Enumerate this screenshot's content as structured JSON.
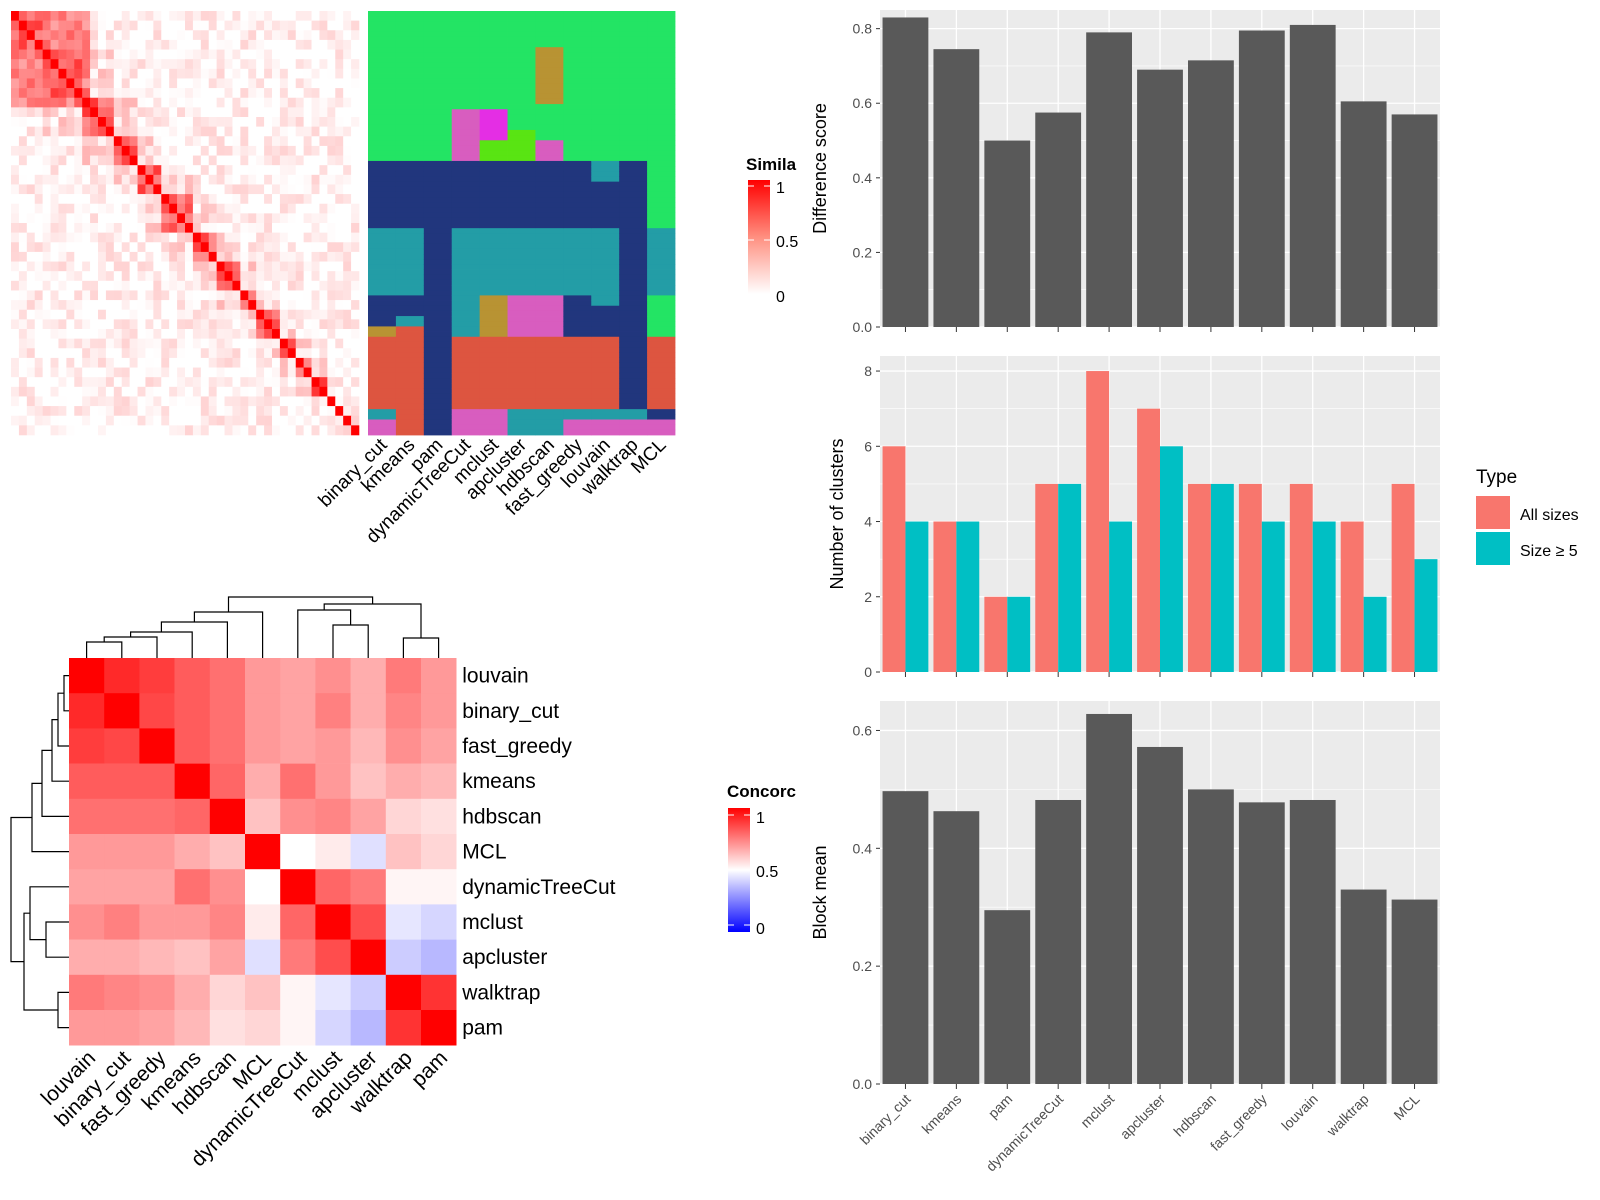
{
  "clust_labels": [
    "binary_cut",
    "kmeans",
    "pam",
    "dynamicTreeCut",
    "mclust",
    "apcluster",
    "hdbscan",
    "fast_greedy",
    "louvain",
    "walktrap",
    "MCL"
  ],
  "conc_labels": [
    "louvain",
    "binary_cut",
    "fast_greedy",
    "kmeans",
    "hdbscan",
    "MCL",
    "dynamicTreeCut",
    "mclust",
    "apcluster",
    "walktrap",
    "pam"
  ],
  "legends": {
    "similarity": {
      "title": "Simila",
      "ticks": [
        "1",
        "0.5",
        "0"
      ]
    },
    "concordance": {
      "title": "Concorc",
      "ticks": [
        "1",
        "0.5",
        "0"
      ]
    }
  },
  "cluster_colors": [
    "#23e464",
    "#21367d",
    "#239da6",
    "#dd5540",
    "#d85dbf",
    "#b89333",
    "#e42ee4",
    "#59e413"
  ],
  "clusters": {
    "binary_cut": [
      0,
      0,
      0,
      0,
      0,
      0,
      0,
      0,
      0,
      0,
      0,
      0,
      0,
      0,
      0,
      0,
      0,
      0,
      0,
      0,
      0,
      0,
      0,
      0,
      0,
      0,
      0,
      0,
      0,
      1,
      1,
      1,
      1,
      1,
      1,
      1,
      1,
      1,
      1,
      1,
      1,
      1,
      2,
      2,
      2,
      2,
      2,
      2,
      2,
      2,
      2,
      2,
      2,
      2,
      2,
      1,
      1,
      1,
      1,
      1,
      1,
      5,
      5,
      3,
      3,
      3,
      3,
      3,
      3,
      3,
      3,
      3,
      3,
      3,
      3,
      3,
      3,
      2,
      2,
      4,
      4,
      4
    ],
    "kmeans": [
      0,
      0,
      0,
      0,
      0,
      0,
      0,
      0,
      0,
      0,
      0,
      0,
      0,
      0,
      0,
      0,
      0,
      0,
      0,
      0,
      0,
      0,
      0,
      0,
      0,
      0,
      0,
      0,
      0,
      1,
      1,
      1,
      1,
      1,
      1,
      1,
      1,
      1,
      1,
      1,
      1,
      1,
      2,
      2,
      2,
      2,
      2,
      2,
      2,
      2,
      2,
      2,
      2,
      2,
      2,
      1,
      1,
      1,
      1,
      2,
      2,
      3,
      3,
      3,
      3,
      3,
      3,
      3,
      3,
      3,
      3,
      3,
      3,
      3,
      3,
      3,
      3,
      3,
      3,
      3,
      3,
      3
    ],
    "pam": [
      0,
      0,
      0,
      0,
      0,
      0,
      0,
      0,
      0,
      0,
      0,
      0,
      0,
      0,
      0,
      0,
      0,
      0,
      0,
      0,
      0,
      0,
      0,
      0,
      0,
      0,
      0,
      0,
      0,
      1,
      1,
      1,
      1,
      1,
      1,
      1,
      1,
      1,
      1,
      1,
      1,
      1,
      1,
      1,
      1,
      1,
      1,
      1,
      1,
      1,
      1,
      1,
      1,
      1,
      1,
      1,
      1,
      1,
      1,
      1,
      1,
      1,
      1,
      1,
      1,
      1,
      1,
      1,
      1,
      1,
      1,
      1,
      1,
      1,
      1,
      1,
      1,
      1,
      1,
      1,
      1,
      1
    ],
    "dynamicTreeCut": [
      0,
      0,
      0,
      0,
      0,
      0,
      0,
      0,
      0,
      0,
      0,
      0,
      0,
      0,
      0,
      0,
      0,
      0,
      0,
      4,
      4,
      4,
      4,
      4,
      4,
      4,
      4,
      4,
      4,
      1,
      1,
      1,
      1,
      1,
      1,
      1,
      1,
      1,
      1,
      1,
      1,
      1,
      2,
      2,
      2,
      2,
      2,
      2,
      2,
      2,
      2,
      2,
      2,
      2,
      2,
      2,
      2,
      2,
      2,
      2,
      2,
      2,
      2,
      3,
      3,
      3,
      3,
      3,
      3,
      3,
      3,
      3,
      3,
      3,
      3,
      3,
      3,
      4,
      4,
      4,
      4,
      4
    ],
    "mclust": [
      0,
      0,
      0,
      0,
      0,
      0,
      0,
      0,
      0,
      0,
      0,
      0,
      0,
      0,
      0,
      0,
      0,
      0,
      0,
      6,
      6,
      6,
      6,
      6,
      6,
      7,
      7,
      7,
      7,
      1,
      1,
      1,
      1,
      1,
      1,
      1,
      1,
      1,
      1,
      1,
      1,
      1,
      2,
      2,
      2,
      2,
      2,
      2,
      2,
      2,
      2,
      2,
      2,
      2,
      2,
      5,
      5,
      5,
      5,
      5,
      5,
      5,
      5,
      3,
      3,
      3,
      3,
      3,
      3,
      3,
      3,
      3,
      3,
      3,
      3,
      3,
      3,
      4,
      4,
      4,
      4,
      4
    ],
    "apcluster": [
      0,
      0,
      0,
      0,
      0,
      0,
      0,
      0,
      0,
      0,
      0,
      0,
      0,
      0,
      0,
      0,
      0,
      0,
      0,
      0,
      0,
      0,
      0,
      7,
      7,
      7,
      7,
      7,
      7,
      1,
      1,
      1,
      1,
      1,
      1,
      1,
      1,
      1,
      1,
      1,
      1,
      1,
      2,
      2,
      2,
      2,
      2,
      2,
      2,
      2,
      2,
      2,
      2,
      2,
      2,
      4,
      4,
      4,
      4,
      4,
      4,
      4,
      4,
      3,
      3,
      3,
      3,
      3,
      3,
      3,
      3,
      3,
      3,
      3,
      3,
      3,
      3,
      2,
      2,
      2,
      2,
      2
    ],
    "hdbscan": [
      0,
      0,
      0,
      0,
      0,
      0,
      0,
      5,
      5,
      5,
      5,
      5,
      5,
      5,
      5,
      5,
      5,
      5,
      0,
      0,
      0,
      0,
      0,
      0,
      0,
      4,
      4,
      4,
      4,
      1,
      1,
      1,
      1,
      1,
      1,
      1,
      1,
      1,
      1,
      1,
      1,
      1,
      2,
      2,
      2,
      2,
      2,
      2,
      2,
      2,
      2,
      2,
      2,
      2,
      2,
      4,
      4,
      4,
      4,
      4,
      4,
      4,
      4,
      3,
      3,
      3,
      3,
      3,
      3,
      3,
      3,
      3,
      3,
      3,
      3,
      3,
      3,
      2,
      2,
      2,
      2,
      2
    ],
    "fast_greedy": [
      0,
      0,
      0,
      0,
      0,
      0,
      0,
      0,
      0,
      0,
      0,
      0,
      0,
      0,
      0,
      0,
      0,
      0,
      0,
      0,
      0,
      0,
      0,
      0,
      0,
      0,
      0,
      0,
      0,
      1,
      1,
      1,
      1,
      1,
      1,
      1,
      1,
      1,
      1,
      1,
      1,
      1,
      2,
      2,
      2,
      2,
      2,
      2,
      2,
      2,
      2,
      2,
      2,
      2,
      2,
      1,
      1,
      1,
      1,
      1,
      1,
      1,
      1,
      3,
      3,
      3,
      3,
      3,
      3,
      3,
      3,
      3,
      3,
      3,
      3,
      3,
      3,
      2,
      2,
      4,
      4,
      4
    ],
    "louvain": [
      0,
      0,
      0,
      0,
      0,
      0,
      0,
      0,
      0,
      0,
      0,
      0,
      0,
      0,
      0,
      0,
      0,
      0,
      0,
      0,
      0,
      0,
      0,
      0,
      0,
      0,
      0,
      0,
      0,
      2,
      2,
      2,
      2,
      1,
      1,
      1,
      1,
      1,
      1,
      1,
      1,
      1,
      2,
      2,
      2,
      2,
      2,
      2,
      2,
      2,
      2,
      2,
      2,
      2,
      2,
      2,
      2,
      1,
      1,
      1,
      1,
      1,
      1,
      3,
      3,
      3,
      3,
      3,
      3,
      3,
      3,
      3,
      3,
      3,
      3,
      3,
      3,
      2,
      2,
      4,
      4,
      4
    ],
    "walktrap": [
      0,
      0,
      0,
      0,
      0,
      0,
      0,
      0,
      0,
      0,
      0,
      0,
      0,
      0,
      0,
      0,
      0,
      0,
      0,
      0,
      0,
      0,
      0,
      0,
      0,
      0,
      0,
      0,
      0,
      1,
      1,
      1,
      1,
      1,
      1,
      1,
      1,
      1,
      1,
      1,
      1,
      1,
      1,
      1,
      1,
      1,
      1,
      1,
      1,
      1,
      1,
      1,
      1,
      1,
      1,
      1,
      1,
      1,
      1,
      1,
      1,
      1,
      1,
      1,
      1,
      1,
      1,
      1,
      1,
      1,
      1,
      1,
      1,
      1,
      1,
      1,
      1,
      2,
      2,
      4,
      4,
      4
    ],
    "MCL": [
      0,
      0,
      0,
      0,
      0,
      0,
      0,
      0,
      0,
      0,
      0,
      0,
      0,
      0,
      0,
      0,
      0,
      0,
      0,
      0,
      0,
      0,
      0,
      0,
      0,
      0,
      0,
      0,
      0,
      0,
      0,
      0,
      0,
      0,
      0,
      0,
      0,
      0,
      0,
      0,
      0,
      0,
      2,
      2,
      2,
      2,
      2,
      2,
      2,
      2,
      2,
      2,
      2,
      2,
      2,
      0,
      0,
      0,
      0,
      0,
      0,
      0,
      0,
      3,
      3,
      3,
      3,
      3,
      3,
      3,
      3,
      3,
      3,
      3,
      3,
      3,
      3,
      1,
      1,
      4,
      4,
      4
    ]
  },
  "chart_data": [
    {
      "type": "heatmap",
      "description_note": "term similarity matrix with diagonal blocks",
      "values_range": [
        0,
        1
      ],
      "block_sizes": [
        4,
        5,
        4,
        3,
        3,
        4,
        3,
        3,
        2,
        3,
        2,
        2,
        2,
        1,
        1,
        1,
        1
      ],
      "legend_title": "Simila",
      "legend_ticks": [
        1,
        0.5,
        0
      ]
    },
    {
      "type": "heatmap",
      "legend_title": "Concorc",
      "legend_ticks": [
        1,
        0.5,
        0
      ],
      "rows": [
        "louvain",
        "binary_cut",
        "fast_greedy",
        "kmeans",
        "hdbscan",
        "MCL",
        "dynamicTreeCut",
        "mclust",
        "apcluster",
        "walktrap",
        "pam"
      ],
      "cols": [
        "louvain",
        "binary_cut",
        "fast_greedy",
        "kmeans",
        "hdbscan",
        "MCL",
        "dynamicTreeCut",
        "mclust",
        "apcluster",
        "walktrap",
        "pam"
      ],
      "values": [
        [
          1.0,
          0.92,
          0.88,
          0.82,
          0.78,
          0.7,
          0.68,
          0.72,
          0.66,
          0.76,
          0.7
        ],
        [
          0.92,
          1.0,
          0.86,
          0.82,
          0.78,
          0.7,
          0.68,
          0.75,
          0.66,
          0.74,
          0.7
        ],
        [
          0.88,
          0.86,
          1.0,
          0.82,
          0.78,
          0.7,
          0.68,
          0.7,
          0.64,
          0.72,
          0.68
        ],
        [
          0.82,
          0.82,
          0.82,
          1.0,
          0.8,
          0.66,
          0.78,
          0.7,
          0.62,
          0.66,
          0.64
        ],
        [
          0.78,
          0.78,
          0.78,
          0.8,
          1.0,
          0.62,
          0.72,
          0.74,
          0.68,
          0.58,
          0.56
        ],
        [
          0.7,
          0.7,
          0.7,
          0.66,
          0.62,
          1.0,
          0.5,
          0.54,
          0.44,
          0.62,
          0.58
        ],
        [
          0.68,
          0.68,
          0.68,
          0.78,
          0.72,
          0.5,
          1.0,
          0.8,
          0.76,
          0.52,
          0.52
        ],
        [
          0.72,
          0.75,
          0.7,
          0.7,
          0.74,
          0.54,
          0.8,
          1.0,
          0.85,
          0.45,
          0.42
        ],
        [
          0.66,
          0.66,
          0.64,
          0.62,
          0.68,
          0.44,
          0.76,
          0.85,
          1.0,
          0.4,
          0.36
        ],
        [
          0.76,
          0.74,
          0.72,
          0.66,
          0.58,
          0.62,
          0.52,
          0.45,
          0.4,
          1.0,
          0.9
        ],
        [
          0.7,
          0.7,
          0.68,
          0.64,
          0.56,
          0.58,
          0.52,
          0.42,
          0.36,
          0.9,
          1.0
        ]
      ]
    },
    {
      "type": "bar",
      "categories": [
        "binary_cut",
        "kmeans",
        "pam",
        "dynamicTreeCut",
        "mclust",
        "apcluster",
        "hdbscan",
        "fast_greedy",
        "louvain",
        "walktrap",
        "MCL"
      ],
      "values": [
        0.83,
        0.745,
        0.5,
        0.575,
        0.79,
        0.69,
        0.715,
        0.795,
        0.81,
        0.605,
        0.57
      ],
      "ylabel": "Difference score",
      "ylim": [
        0,
        0.85
      ],
      "yticks": [
        0.0,
        0.2,
        0.4,
        0.6,
        0.8
      ],
      "tick_labels": [
        "0.0",
        "0.2",
        "0.4",
        "0.6",
        "0.8"
      ]
    },
    {
      "type": "bar",
      "categories": [
        "binary_cut",
        "kmeans",
        "pam",
        "dynamicTreeCut",
        "mclust",
        "apcluster",
        "hdbscan",
        "fast_greedy",
        "louvain",
        "walktrap",
        "MCL"
      ],
      "series": [
        {
          "name": "All sizes",
          "values": [
            6,
            4,
            2,
            5,
            8,
            7,
            5,
            5,
            5,
            4,
            5
          ]
        },
        {
          "name": "Size ≥ 5",
          "values": [
            4,
            4,
            2,
            5,
            4,
            6,
            5,
            4,
            4,
            2,
            3
          ]
        }
      ],
      "ylabel": "Number of clusters",
      "ylim": [
        0,
        8.4
      ],
      "yticks": [
        0,
        2,
        4,
        6,
        8
      ],
      "tick_labels": [
        "0",
        "2",
        "4",
        "6",
        "8"
      ],
      "legend_title": "Type"
    },
    {
      "type": "bar",
      "categories": [
        "binary_cut",
        "kmeans",
        "pam",
        "dynamicTreeCut",
        "mclust",
        "apcluster",
        "hdbscan",
        "fast_greedy",
        "louvain",
        "walktrap",
        "MCL"
      ],
      "values": [
        0.497,
        0.463,
        0.295,
        0.482,
        0.628,
        0.572,
        0.5,
        0.478,
        0.482,
        0.33,
        0.313
      ],
      "ylabel": "Block mean",
      "ylim": [
        0,
        0.65
      ],
      "yticks": [
        0.0,
        0.2,
        0.4,
        0.6
      ],
      "tick_labels": [
        "0.0",
        "0.2",
        "0.4",
        "0.6"
      ]
    }
  ],
  "colors": {
    "panel_bg": "#ebebeb",
    "grid": "#ffffff",
    "bar_gray": "#595959",
    "series_all": "#f8766d",
    "series_size5": "#00bfc4",
    "heat_high": "#ff0000",
    "heat_low": "#ffffff",
    "conc_low": "#0000ff"
  }
}
